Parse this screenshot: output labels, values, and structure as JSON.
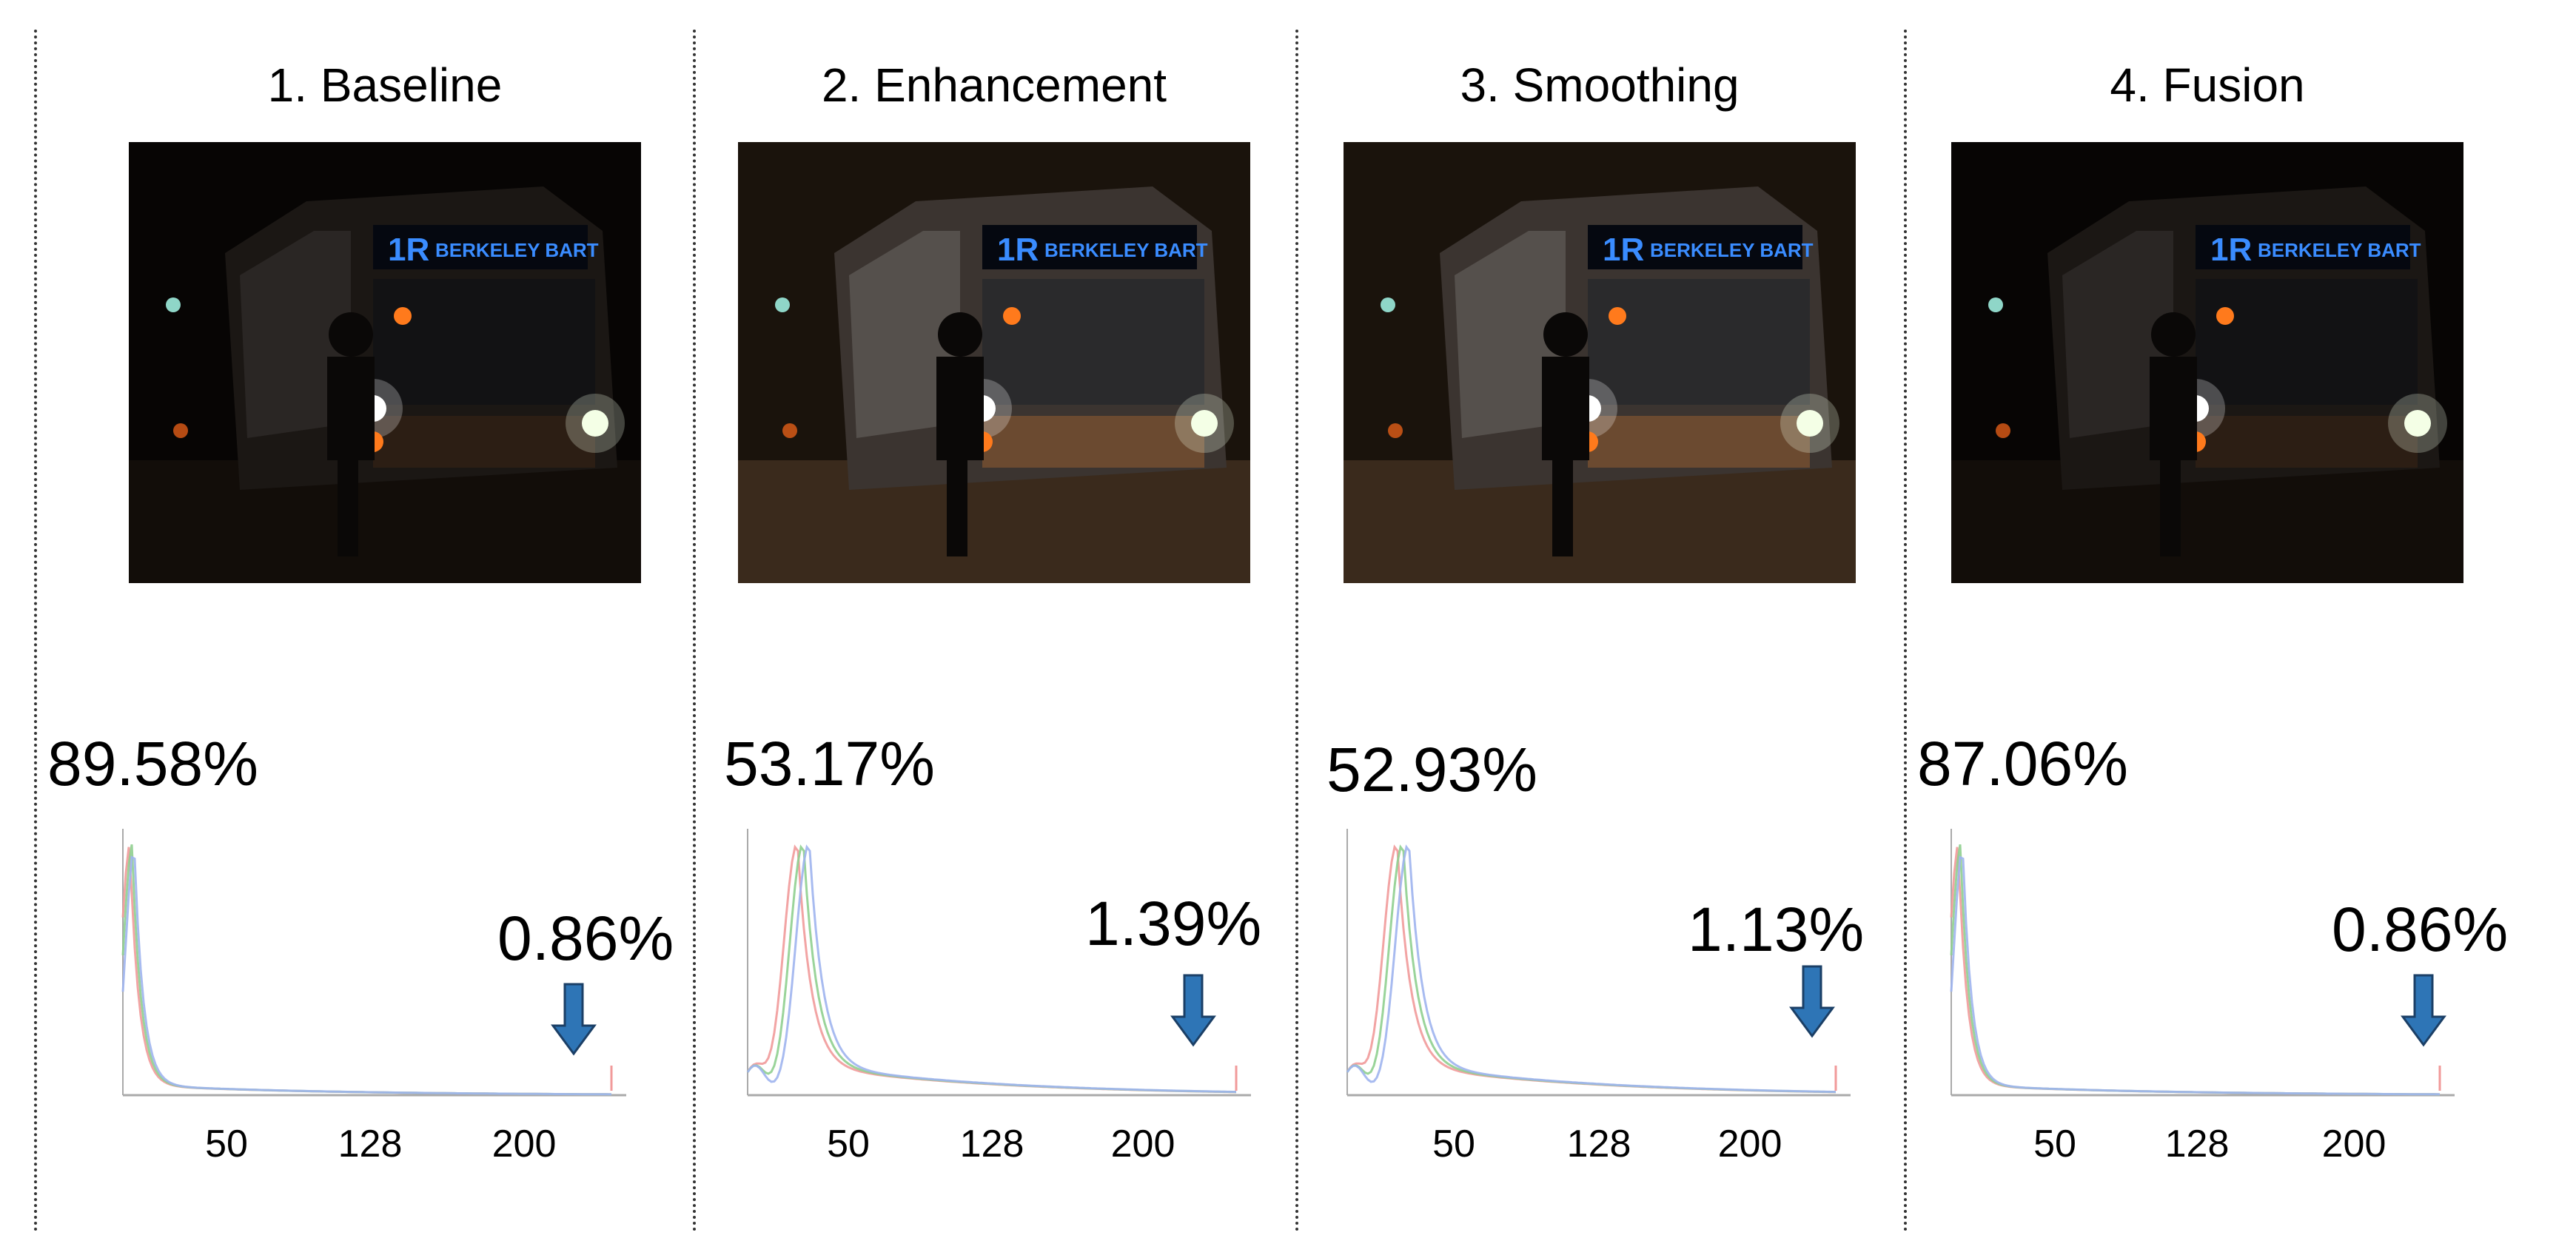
{
  "panels": [
    {
      "title": "1. Baseline",
      "dark_percent": "89.58%",
      "bright_percent": "0.86%",
      "ticks": [
        "50",
        "128",
        "200"
      ],
      "brightness": "dark"
    },
    {
      "title": "2. Enhancement",
      "dark_percent": "53.17%",
      "bright_percent": "1.39%",
      "ticks": [
        "50",
        "128",
        "200"
      ],
      "brightness": "enhanced"
    },
    {
      "title": "3. Smoothing",
      "dark_percent": "52.93%",
      "bright_percent": "1.13%",
      "ticks": [
        "50",
        "128",
        "200"
      ],
      "brightness": "enhanced"
    },
    {
      "title": "4. Fusion",
      "dark_percent": "87.06%",
      "bright_percent": "0.86%",
      "ticks": [
        "50",
        "128",
        "200"
      ],
      "brightness": "dark"
    }
  ],
  "photo": {
    "sign_route": "1R",
    "sign_text": "BERKELEY BART"
  },
  "colors": {
    "arrow": "#2e75b6",
    "hist_red": "#f19a9a",
    "hist_green": "#8fcf8f",
    "hist_blue": "#9fb4ee",
    "hist_gray": "#aaaaaa"
  }
}
